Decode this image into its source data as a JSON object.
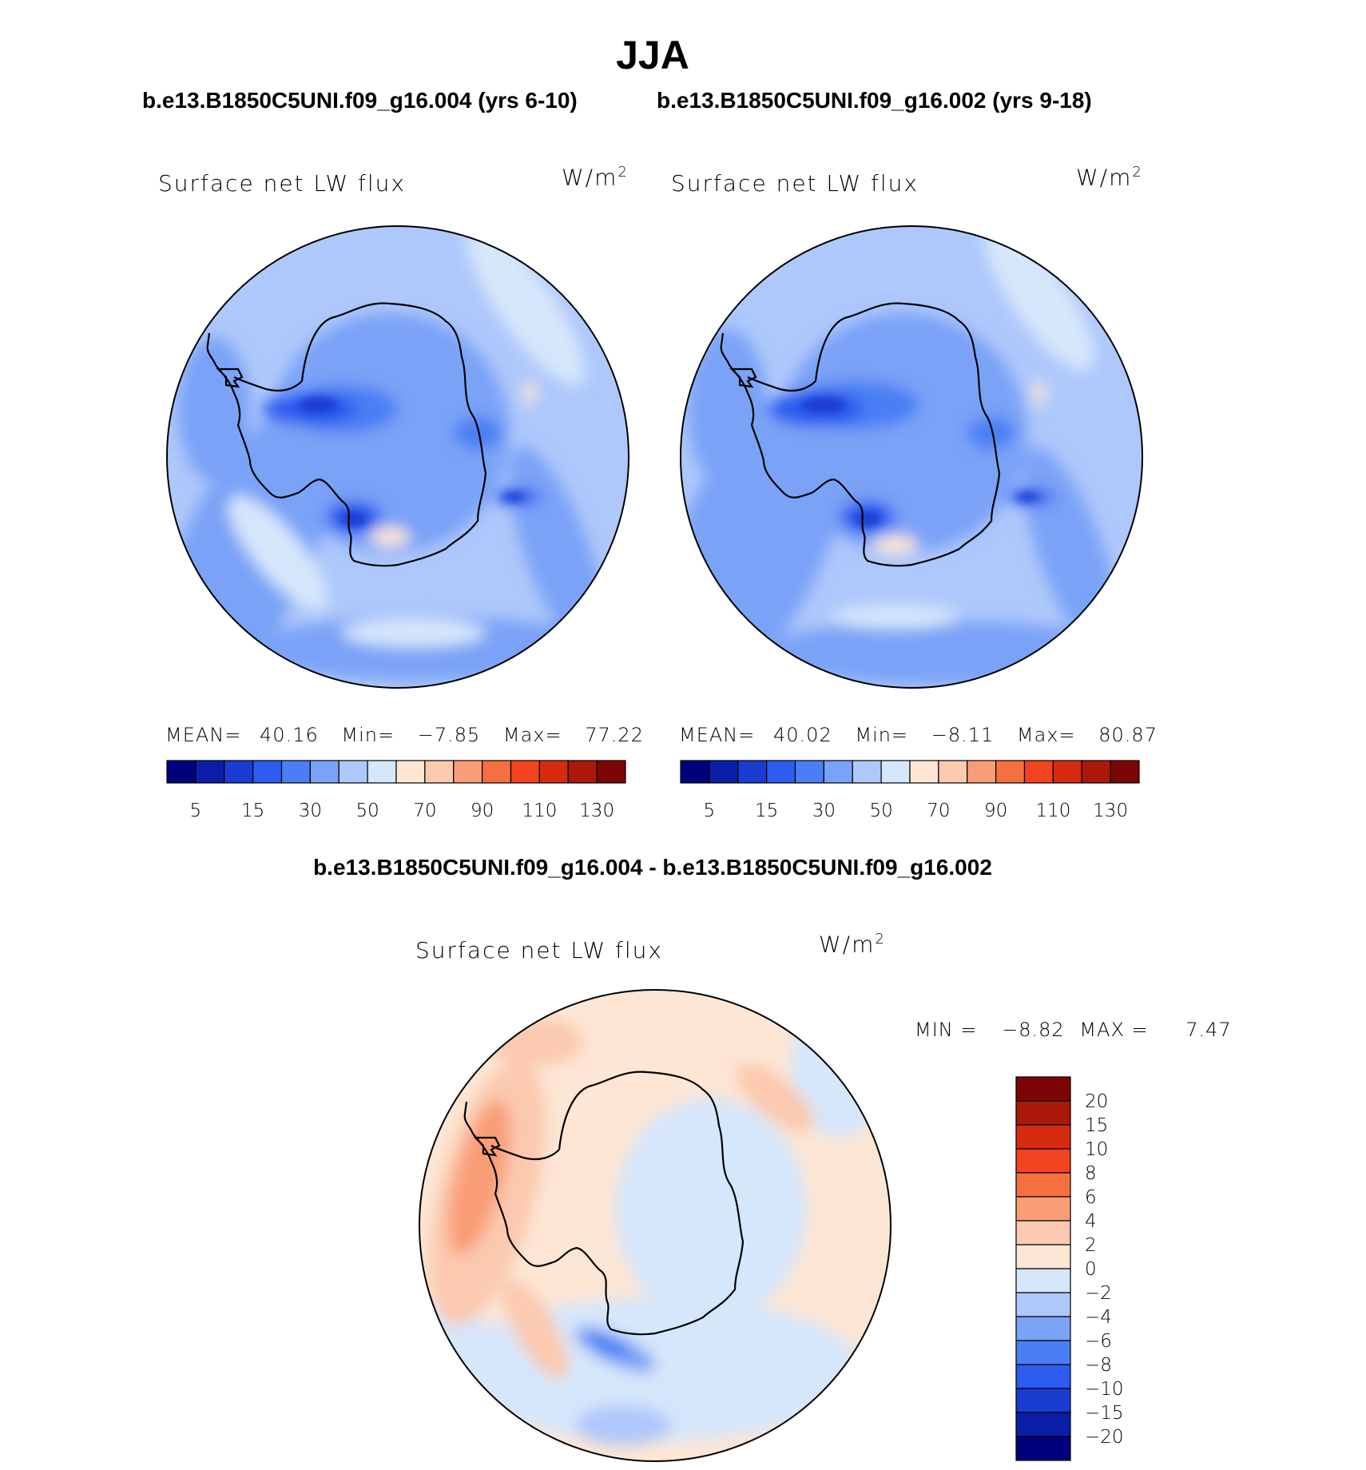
{
  "figure": {
    "season": "JJA",
    "subtitle_left": "b.e13.B1850C5UNI.f09_g16.004 (yrs 6-10)",
    "subtitle_right": "b.e13.B1850C5UNI.f09_g16.002 (yrs 9-18)",
    "diff_title": "b.e13.B1850C5UNI.f09_g16.004 - b.e13.B1850C5UNI.f09_g16.002"
  },
  "colors": {
    "abs_levels": [
      "#00007d",
      "#0b1ea8",
      "#1a3cd0",
      "#2c5cf0",
      "#4a7ef4",
      "#7aa2f7",
      "#aec8fb",
      "#d6e6fb",
      "#fde6d4",
      "#fbc9af",
      "#f99d77",
      "#f6703f",
      "#f2431f",
      "#d72b0f",
      "#ab1a09",
      "#7e0505"
    ],
    "diff_levels": [
      "#00007d",
      "#0b1ea8",
      "#1a3cd0",
      "#2c5cf0",
      "#4a7ef4",
      "#7aa2f7",
      "#aec8fb",
      "#d6e6fb",
      "#fde6d4",
      "#fbc9af",
      "#f99d77",
      "#f6703f",
      "#f2431f",
      "#d72b0f",
      "#ab1a09",
      "#7e0505"
    ]
  },
  "chart_data": [
    {
      "type": "heatmap",
      "projection": "south-polar-stereographic",
      "panel": "top-left",
      "title": "Surface net LW flux",
      "units_prefix": "W/m",
      "units_sup": "2",
      "mean_label": "MEAN=",
      "mean": "40.16",
      "min_label": "Min=",
      "min": "−7.85",
      "max_label": "Max=",
      "max": "77.22",
      "colorbar_ticks": [
        "5",
        "15",
        "30",
        "50",
        "70",
        "90",
        "110",
        "130"
      ]
    },
    {
      "type": "heatmap",
      "projection": "south-polar-stereographic",
      "panel": "top-right",
      "title": "Surface net LW flux",
      "units_prefix": "W/m",
      "units_sup": "2",
      "mean_label": "MEAN=",
      "mean": "40.02",
      "min_label": "Min=",
      "min": "−8.11",
      "max_label": "Max=",
      "max": "80.87",
      "colorbar_ticks": [
        "5",
        "15",
        "30",
        "50",
        "70",
        "90",
        "110",
        "130"
      ]
    },
    {
      "type": "heatmap",
      "projection": "south-polar-stereographic",
      "panel": "bottom-difference",
      "title": "Surface net LW flux",
      "units_prefix": "W/m",
      "units_sup": "2",
      "min_label": "MIN =",
      "min": "−8.82",
      "max_label": "MAX =",
      "max": "7.47",
      "colorbar_ticks": [
        "20",
        "15",
        "10",
        "8",
        "6",
        "4",
        "2",
        "0",
        "−2",
        "−4",
        "−6",
        "−8",
        "−10",
        "−15",
        "−20"
      ]
    }
  ]
}
